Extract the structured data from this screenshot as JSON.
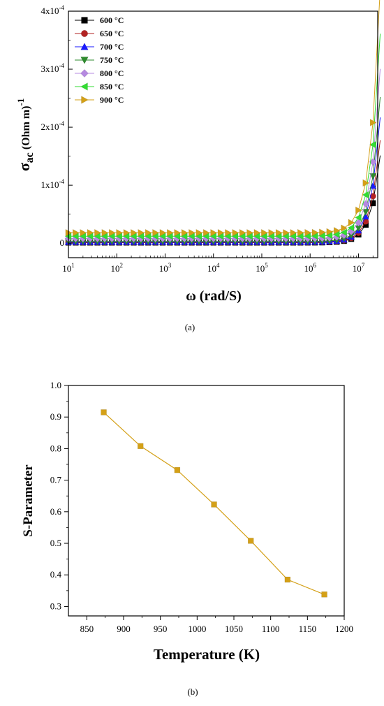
{
  "chart_data": [
    {
      "type": "scatter",
      "panel_label": "(a)",
      "xlabel": "ω (rad/S)",
      "ylabel_main": "σ",
      "ylabel_sub": "ac",
      "ylabel_unit": "(Ohm m)",
      "ylabel_sup": "-1",
      "xscale": "log",
      "xlim": [
        10,
        25000000
      ],
      "ylim": [
        -2.5e-05,
        0.0004
      ],
      "x_ticks": [
        {
          "value": 10,
          "base": "10",
          "exp": "1"
        },
        {
          "value": 100,
          "base": "10",
          "exp": "2"
        },
        {
          "value": 1000,
          "base": "10",
          "exp": "3"
        },
        {
          "value": 10000,
          "base": "10",
          "exp": "4"
        },
        {
          "value": 100000,
          "base": "10",
          "exp": "5"
        },
        {
          "value": 1000000,
          "base": "10",
          "exp": "6"
        },
        {
          "value": 10000000,
          "base": "10",
          "exp": "7"
        }
      ],
      "y_ticks": [
        {
          "value": 0,
          "label": "0",
          "exp": ""
        },
        {
          "value": 0.0001,
          "label": "1x10",
          "exp": "-4"
        },
        {
          "value": 0.0002,
          "label": "2x10",
          "exp": "-4"
        },
        {
          "value": 0.0003,
          "label": "3x10",
          "exp": "-4"
        },
        {
          "value": 0.0004,
          "label": "4x10",
          "exp": "-4"
        }
      ],
      "legend_position": "top-left",
      "series": [
        {
          "name": "600 °C",
          "color": "#000000",
          "marker": "square",
          "low": 1e-06,
          "high": 0.000115
        },
        {
          "name": "650 °C",
          "color": "#b22222",
          "marker": "circle",
          "low": 1.5e-06,
          "high": 0.000135
        },
        {
          "name": "700 °C",
          "color": "#1a1aff",
          "marker": "triangle-up",
          "low": 2e-06,
          "high": 0.000165
        },
        {
          "name": "750 °C",
          "color": "#2e8b2e",
          "marker": "triangle-down",
          "low": 3e-06,
          "high": 0.000192
        },
        {
          "name": "800 °C",
          "color": "#b589e0",
          "marker": "diamond",
          "low": 8e-06,
          "high": 0.00023
        },
        {
          "name": "850 °C",
          "color": "#33dd33",
          "marker": "triangle-left",
          "low": 1.2e-05,
          "high": 0.000277
        },
        {
          "name": "900 °C",
          "color": "#d4a017",
          "marker": "triangle-right",
          "low": 1.8e-05,
          "high": 0.000337
        }
      ]
    },
    {
      "type": "line",
      "panel_label": "(b)",
      "xlabel": "Temperature (K)",
      "ylabel": "S-Parameter",
      "xlim": [
        825,
        1200
      ],
      "ylim": [
        0.27,
        1.0
      ],
      "x_ticks": [
        850,
        900,
        950,
        1000,
        1050,
        1100,
        1150,
        1200
      ],
      "y_ticks": [
        "0.3",
        "0.4",
        "0.5",
        "0.6",
        "0.7",
        "0.8",
        "0.9",
        "1.0"
      ],
      "color": "#d4a017",
      "marker": "square",
      "x": [
        873,
        923,
        973,
        1023,
        1073,
        1123,
        1173
      ],
      "y": [
        0.915,
        0.808,
        0.732,
        0.623,
        0.508,
        0.385,
        0.338
      ]
    }
  ]
}
